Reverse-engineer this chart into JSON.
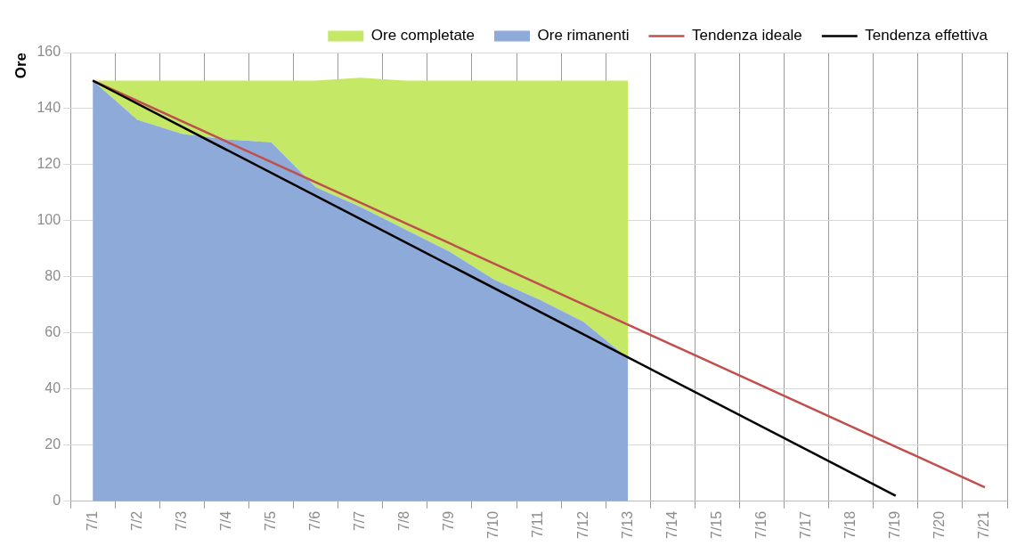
{
  "chart_data": {
    "type": "area",
    "stacked": true,
    "ylabel": "Ore",
    "categories": [
      "7/1",
      "7/2",
      "7/3",
      "7/4",
      "7/5",
      "7/6",
      "7/7",
      "7/8",
      "7/9",
      "7/10",
      "7/11",
      "7/12",
      "7/13",
      "7/14",
      "7/15",
      "7/16",
      "7/17",
      "7/18",
      "7/19",
      "7/20",
      "7/21"
    ],
    "series": [
      {
        "name": "Ore rimanenti",
        "color": "#8eaad8",
        "values": [
          150,
          136,
          131,
          129,
          128,
          112,
          105,
          97,
          89,
          79,
          72,
          64,
          51,
          null,
          null,
          null,
          null,
          null,
          null,
          null,
          null
        ]
      },
      {
        "name": "Ore completate",
        "color": "#c5e866",
        "values": [
          0,
          14,
          19,
          21,
          22,
          38,
          46,
          53,
          61,
          71,
          78,
          86,
          99,
          null,
          null,
          null,
          null,
          null,
          null,
          null,
          null
        ]
      },
      {
        "name": "Tendenza ideale",
        "type": "line",
        "color": "#c0504d",
        "x": [
          "7/1",
          "7/21"
        ],
        "values": [
          150,
          5
        ]
      },
      {
        "name": "Tendenza effettiva",
        "type": "line",
        "color": "#000000",
        "x": [
          "7/1",
          "7/19"
        ],
        "values": [
          150,
          2
        ]
      }
    ],
    "ylim": [
      0,
      160
    ],
    "yticks": [
      0,
      20,
      40,
      60,
      80,
      100,
      120,
      140,
      160
    ],
    "grid": true,
    "legend": "top",
    "marker": "none"
  }
}
